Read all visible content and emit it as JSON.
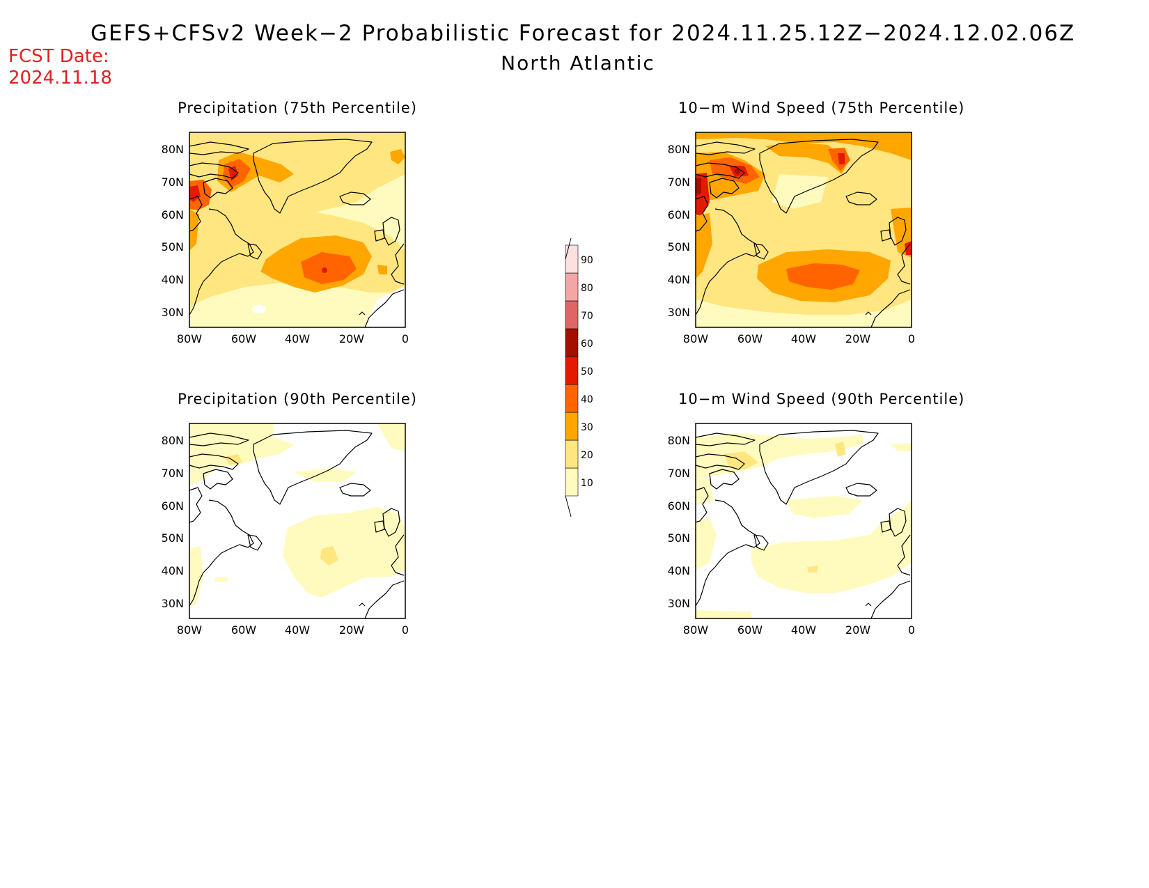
{
  "header": {
    "title": "GEFS+CFSv2 Week−2 Probabilistic Forecast for 2024.11.25.12Z−2024.12.02.06Z",
    "subtitle": "North Atlantic",
    "fcst_label": "FCST Date:",
    "fcst_date": "2024.11.18"
  },
  "panels": [
    {
      "title": "Precipitation (75th Percentile)"
    },
    {
      "title": "10−m Wind Speed (75th Percentile)"
    },
    {
      "title": "Precipitation (90th Percentile)"
    },
    {
      "title": "10−m Wind Speed (90th Percentile)"
    }
  ],
  "axes": {
    "x_ticks": [
      "80W",
      "60W",
      "40W",
      "20W",
      "0"
    ],
    "y_ticks": [
      "80N",
      "70N",
      "60N",
      "50N",
      "40N",
      "30N"
    ]
  },
  "colorbar": {
    "levels": [
      "10",
      "20",
      "30",
      "40",
      "50",
      "60",
      "70",
      "80",
      "90"
    ],
    "colors": [
      "#fffbbf",
      "#ffe680",
      "#ffa600",
      "#ff6400",
      "#e31a00",
      "#a50f00",
      "#e06666",
      "#f4a6a6",
      "#fde0e0"
    ]
  }
}
